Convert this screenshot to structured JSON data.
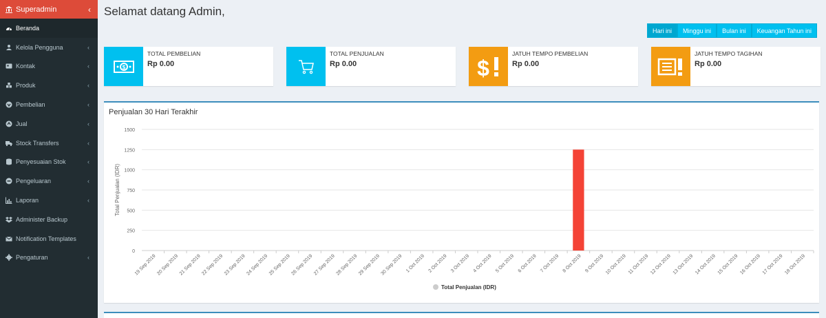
{
  "sidebar": {
    "brand": "Superadmin",
    "items": [
      {
        "label": "Beranda",
        "icon": "dashboard-icon",
        "active": true,
        "chevron": false
      },
      {
        "label": "Kelola Pengguna",
        "icon": "users-icon",
        "chevron": true
      },
      {
        "label": "Kontak",
        "icon": "address-card-icon",
        "chevron": true
      },
      {
        "label": "Produk",
        "icon": "cubes-icon",
        "chevron": true
      },
      {
        "label": "Pembelian",
        "icon": "arrow-circle-down-icon",
        "chevron": true
      },
      {
        "label": "Jual",
        "icon": "arrow-circle-up-icon",
        "chevron": true
      },
      {
        "label": "Stock Transfers",
        "icon": "truck-icon",
        "chevron": true
      },
      {
        "label": "Penyesuaian Stok",
        "icon": "database-icon",
        "chevron": true
      },
      {
        "label": "Pengeluaran",
        "icon": "minus-circle-icon",
        "chevron": true
      },
      {
        "label": "Laporan",
        "icon": "bar-chart-icon",
        "chevron": true
      },
      {
        "label": "Administer Backup",
        "icon": "dropbox-icon",
        "chevron": false
      },
      {
        "label": "Notification Templates",
        "icon": "envelope-icon",
        "chevron": false
      },
      {
        "label": "Pengaturan",
        "icon": "cog-icon",
        "chevron": true
      }
    ]
  },
  "header": {
    "title": "Selamat datang Admin,"
  },
  "filters": [
    "Hari ini",
    "Minggu ini",
    "Bulan ini",
    "Keuangan Tahun ini"
  ],
  "info_boxes": [
    {
      "label": "TOTAL PEMBELIAN",
      "value": "Rp 0.00",
      "icon": "money-icon",
      "color": "#00c0ef"
    },
    {
      "label": "TOTAL PENJUALAN",
      "value": "Rp 0.00",
      "icon": "cart-icon",
      "color": "#00c0ef"
    },
    {
      "label": "JATUH TEMPO PEMBELIAN",
      "value": "Rp 0.00",
      "icon": "dollar-exclamation-icon",
      "color": "#f39c12"
    },
    {
      "label": "JATUH TEMPO TAGIHAN",
      "value": "Rp 0.00",
      "icon": "invoice-exclamation-icon",
      "color": "#f39c12"
    }
  ],
  "chart_box_title": "Penjualan 30 Hari Terakhir",
  "chart_data": {
    "type": "bar",
    "ylabel": "Total Penjualan (IDR)",
    "xlabel": "",
    "ylim": [
      0,
      1500
    ],
    "yticks": [
      0,
      250,
      500,
      750,
      1000,
      1250,
      1500
    ],
    "grid": true,
    "legend_position": "bottom",
    "categories": [
      "19 Sep 2019",
      "20 Sep 2019",
      "21 Sep 2019",
      "22 Sep 2019",
      "23 Sep 2019",
      "24 Sep 2019",
      "25 Sep 2019",
      "26 Sep 2019",
      "27 Sep 2019",
      "28 Sep 2019",
      "29 Sep 2019",
      "30 Sep 2019",
      "1 Oct 2019",
      "2 Oct 2019",
      "3 Oct 2019",
      "4 Oct 2019",
      "5 Oct 2019",
      "6 Oct 2019",
      "7 Oct 2019",
      "8 Oct 2019",
      "9 Oct 2019",
      "10 Oct 2019",
      "11 Oct 2019",
      "12 Oct 2019",
      "13 Oct 2019",
      "14 Oct 2019",
      "15 Oct 2019",
      "16 Oct 2019",
      "17 Oct 2019",
      "18 Oct 2019"
    ],
    "series": [
      {
        "name": "Total Penjualan (IDR)",
        "color": "#f44336",
        "values": [
          0,
          0,
          0,
          0,
          0,
          0,
          0,
          0,
          0,
          0,
          0,
          0,
          0,
          0,
          0,
          0,
          0,
          0,
          0,
          1250,
          0,
          0,
          0,
          0,
          0,
          0,
          0,
          0,
          0,
          0
        ]
      }
    ]
  }
}
